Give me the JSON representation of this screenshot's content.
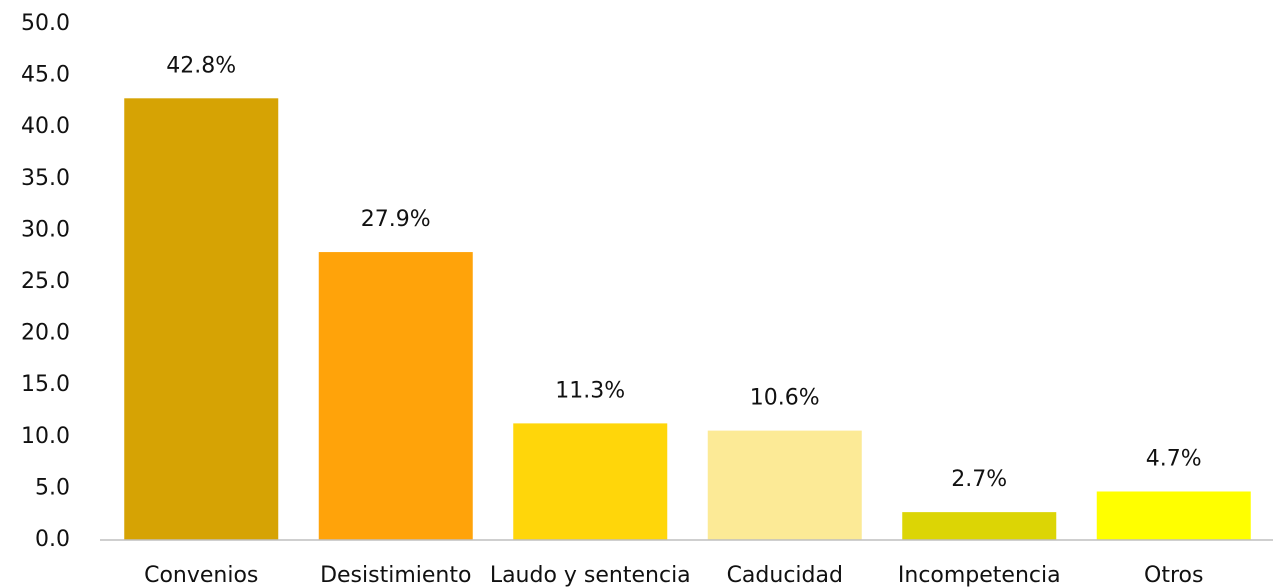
{
  "chart_data": {
    "type": "bar",
    "categories": [
      "Convenios",
      "Desistimiento",
      "Laudo y sentencia",
      "Caducidad",
      "Incompetencia",
      "Otros"
    ],
    "values": [
      42.8,
      27.9,
      11.3,
      10.6,
      2.7,
      4.7
    ],
    "value_labels": [
      "42.8%",
      "27.9%",
      "11.3%",
      "10.6%",
      "2.7%",
      "4.7%"
    ],
    "colors": [
      "#d6a304",
      "#ffa30a",
      "#ffd60a",
      "#fcea96",
      "#dcd505",
      "#ffff00"
    ],
    "ylim": [
      0,
      50
    ],
    "yticks": [
      {
        "value": 0,
        "label": "0.0"
      },
      {
        "value": 5,
        "label": "5.0"
      },
      {
        "value": 10,
        "label": "10.0"
      },
      {
        "value": 15,
        "label": "15.0"
      },
      {
        "value": 20,
        "label": "20.0"
      },
      {
        "value": 25,
        "label": "25.0"
      },
      {
        "value": 30,
        "label": "30.0"
      },
      {
        "value": 35,
        "label": "35.0"
      },
      {
        "value": 40,
        "label": "40.0"
      },
      {
        "value": 45,
        "label": "45.0"
      },
      {
        "value": 50,
        "label": "50.0"
      }
    ],
    "grid": false
  }
}
